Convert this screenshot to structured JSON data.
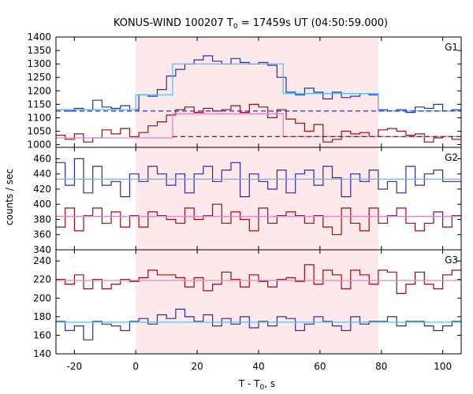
{
  "chart_data": {
    "type": "line",
    "title": "KONUS-WIND 100207 T",
    "title_sub": "0",
    "title_rest": " = 17459s UT (04:50:59.000)",
    "xlabel": "T - T",
    "xlabel_sub": "0",
    "xlabel_rest": ", s",
    "ylabel": "counts / sec",
    "xlim": [
      -26,
      106
    ],
    "x_ticks": [
      -20,
      0,
      20,
      40,
      60,
      80,
      100
    ],
    "x_tick_labels": [
      "-20",
      "0",
      "20",
      "40",
      "60",
      "80",
      "100"
    ],
    "highlight_interval": [
      0,
      79
    ],
    "highlight_color": "#fde8ea",
    "colors": {
      "blue": "#2a2ab2",
      "red": "#9b0d0d",
      "lightblue": "#4fc3f7",
      "pink": "#f080c8"
    },
    "panels": [
      {
        "label": "G1",
        "ylim": [
          990,
          1400
        ],
        "y_ticks": [
          1000,
          1050,
          1100,
          1150,
          1200,
          1250,
          1300,
          1350,
          1400
        ],
        "y_tick_labels": [
          "1000",
          "1050",
          "1100",
          "1150",
          "1200",
          "1250",
          "1300",
          "1350",
          "1400"
        ],
        "bin_width": 3,
        "x_start": -26,
        "series": [
          {
            "color": "blue",
            "values": [
              1130,
              1125,
              1135,
              1130,
              1165,
              1140,
              1135,
              1145,
              1130,
              1185,
              1180,
              1205,
              1255,
              1280,
              1300,
              1315,
              1330,
              1310,
              1300,
              1320,
              1305,
              1300,
              1305,
              1295,
              1250,
              1195,
              1185,
              1210,
              1195,
              1170,
              1195,
              1175,
              1180,
              1190,
              1185,
              1130,
              1125,
              1130,
              1120,
              1140,
              1135,
              1150,
              1125,
              1130
            ]
          },
          {
            "color": "red",
            "values": [
              1035,
              1020,
              1040,
              1010,
              1025,
              1055,
              1040,
              1060,
              1030,
              1045,
              1070,
              1085,
              1110,
              1130,
              1140,
              1120,
              1135,
              1125,
              1130,
              1145,
              1120,
              1150,
              1140,
              1100,
              1130,
              1095,
              1080,
              1050,
              1075,
              1010,
              1020,
              1050,
              1040,
              1045,
              1030,
              1055,
              1060,
              1050,
              1035,
              1040,
              1010,
              1025,
              1030,
              1020
            ]
          }
        ],
        "models": [
          {
            "color": "lightblue",
            "x": [
              -26,
              0,
              0,
              12,
              12,
              48,
              48,
              79,
              79,
              106
            ],
            "y": [
              1130,
              1130,
              1185,
              1185,
              1300,
              1300,
              1190,
              1190,
              1125,
              1125
            ]
          },
          {
            "color": "pink",
            "x": [
              -26,
              12,
              12,
              48,
              48,
              106
            ],
            "y": [
              1025,
              1025,
              1115,
              1115,
              1030,
              1030
            ]
          }
        ],
        "background_lines": [
          {
            "color": "blue",
            "x": [
              -26,
              106
            ],
            "y": [
              1125,
              1125
            ],
            "dashed": true
          },
          {
            "color": "red",
            "x": [
              12,
              106
            ],
            "y": [
              1030,
              1030
            ],
            "dashed": true
          }
        ]
      },
      {
        "label": "G2",
        "ylim": [
          340,
          475
        ],
        "y_ticks": [
          340,
          360,
          380,
          400,
          420,
          440,
          460
        ],
        "y_tick_labels": [
          "340",
          "360",
          "380",
          "400",
          "420",
          "440",
          "460"
        ],
        "bin_width": 3,
        "x_start": -26,
        "series": [
          {
            "color": "blue",
            "values": [
              455,
              425,
              460,
              415,
              450,
              425,
              430,
              410,
              440,
              430,
              450,
              440,
              425,
              440,
              415,
              440,
              450,
              430,
              445,
              455,
              410,
              440,
              430,
              420,
              445,
              415,
              440,
              445,
              425,
              450,
              435,
              410,
              440,
              430,
              445,
              420,
              430,
              415,
              450,
              425,
              440,
              445,
              430,
              430
            ]
          },
          {
            "color": "red",
            "values": [
              370,
              395,
              365,
              385,
              395,
              375,
              390,
              370,
              385,
              370,
              390,
              385,
              380,
              375,
              395,
              380,
              385,
              400,
              375,
              390,
              380,
              365,
              395,
              375,
              385,
              390,
              385,
              375,
              385,
              370,
              360,
              395,
              375,
              365,
              395,
              375,
              385,
              395,
              375,
              365,
              375,
              390,
              370,
              385
            ]
          }
        ],
        "models": [
          {
            "color": "lightblue",
            "x": [
              -26,
              106
            ],
            "y": [
              433,
              433
            ]
          },
          {
            "color": "pink",
            "x": [
              -26,
              106
            ],
            "y": [
              384,
              384
            ]
          }
        ],
        "background_lines": []
      },
      {
        "label": "G3",
        "ylim": [
          140,
          252
        ],
        "y_ticks": [
          140,
          160,
          180,
          200,
          220,
          240
        ],
        "y_tick_labels": [
          "140",
          "160",
          "180",
          "200",
          "220",
          "240"
        ],
        "bin_width": 3,
        "x_start": -26,
        "series": [
          {
            "color": "blue",
            "values": [
              175,
              165,
              170,
              155,
              175,
              172,
              170,
              165,
              175,
              178,
              172,
              182,
              178,
              188,
              180,
              175,
              182,
              170,
              178,
              172,
              180,
              168,
              175,
              170,
              180,
              178,
              165,
              172,
              180,
              175,
              170,
              165,
              180,
              172,
              175,
              175,
              180,
              170,
              175,
              175,
              170,
              165,
              170,
              175
            ]
          },
          {
            "color": "red",
            "values": [
              220,
              215,
              225,
              210,
              220,
              210,
              215,
              220,
              218,
              222,
              230,
              225,
              225,
              222,
              212,
              222,
              208,
              215,
              228,
              220,
              212,
              225,
              218,
              212,
              220,
              222,
              218,
              236,
              215,
              230,
              225,
              210,
              230,
              225,
              215,
              230,
              228,
              205,
              215,
              228,
              215,
              210,
              225,
              230
            ]
          }
        ],
        "models": [
          {
            "color": "pink",
            "x": [
              -26,
              106
            ],
            "y": [
              219,
              219
            ]
          },
          {
            "color": "lightblue",
            "x": [
              -26,
              106
            ],
            "y": [
              174,
              174
            ]
          }
        ],
        "background_lines": []
      }
    ]
  }
}
